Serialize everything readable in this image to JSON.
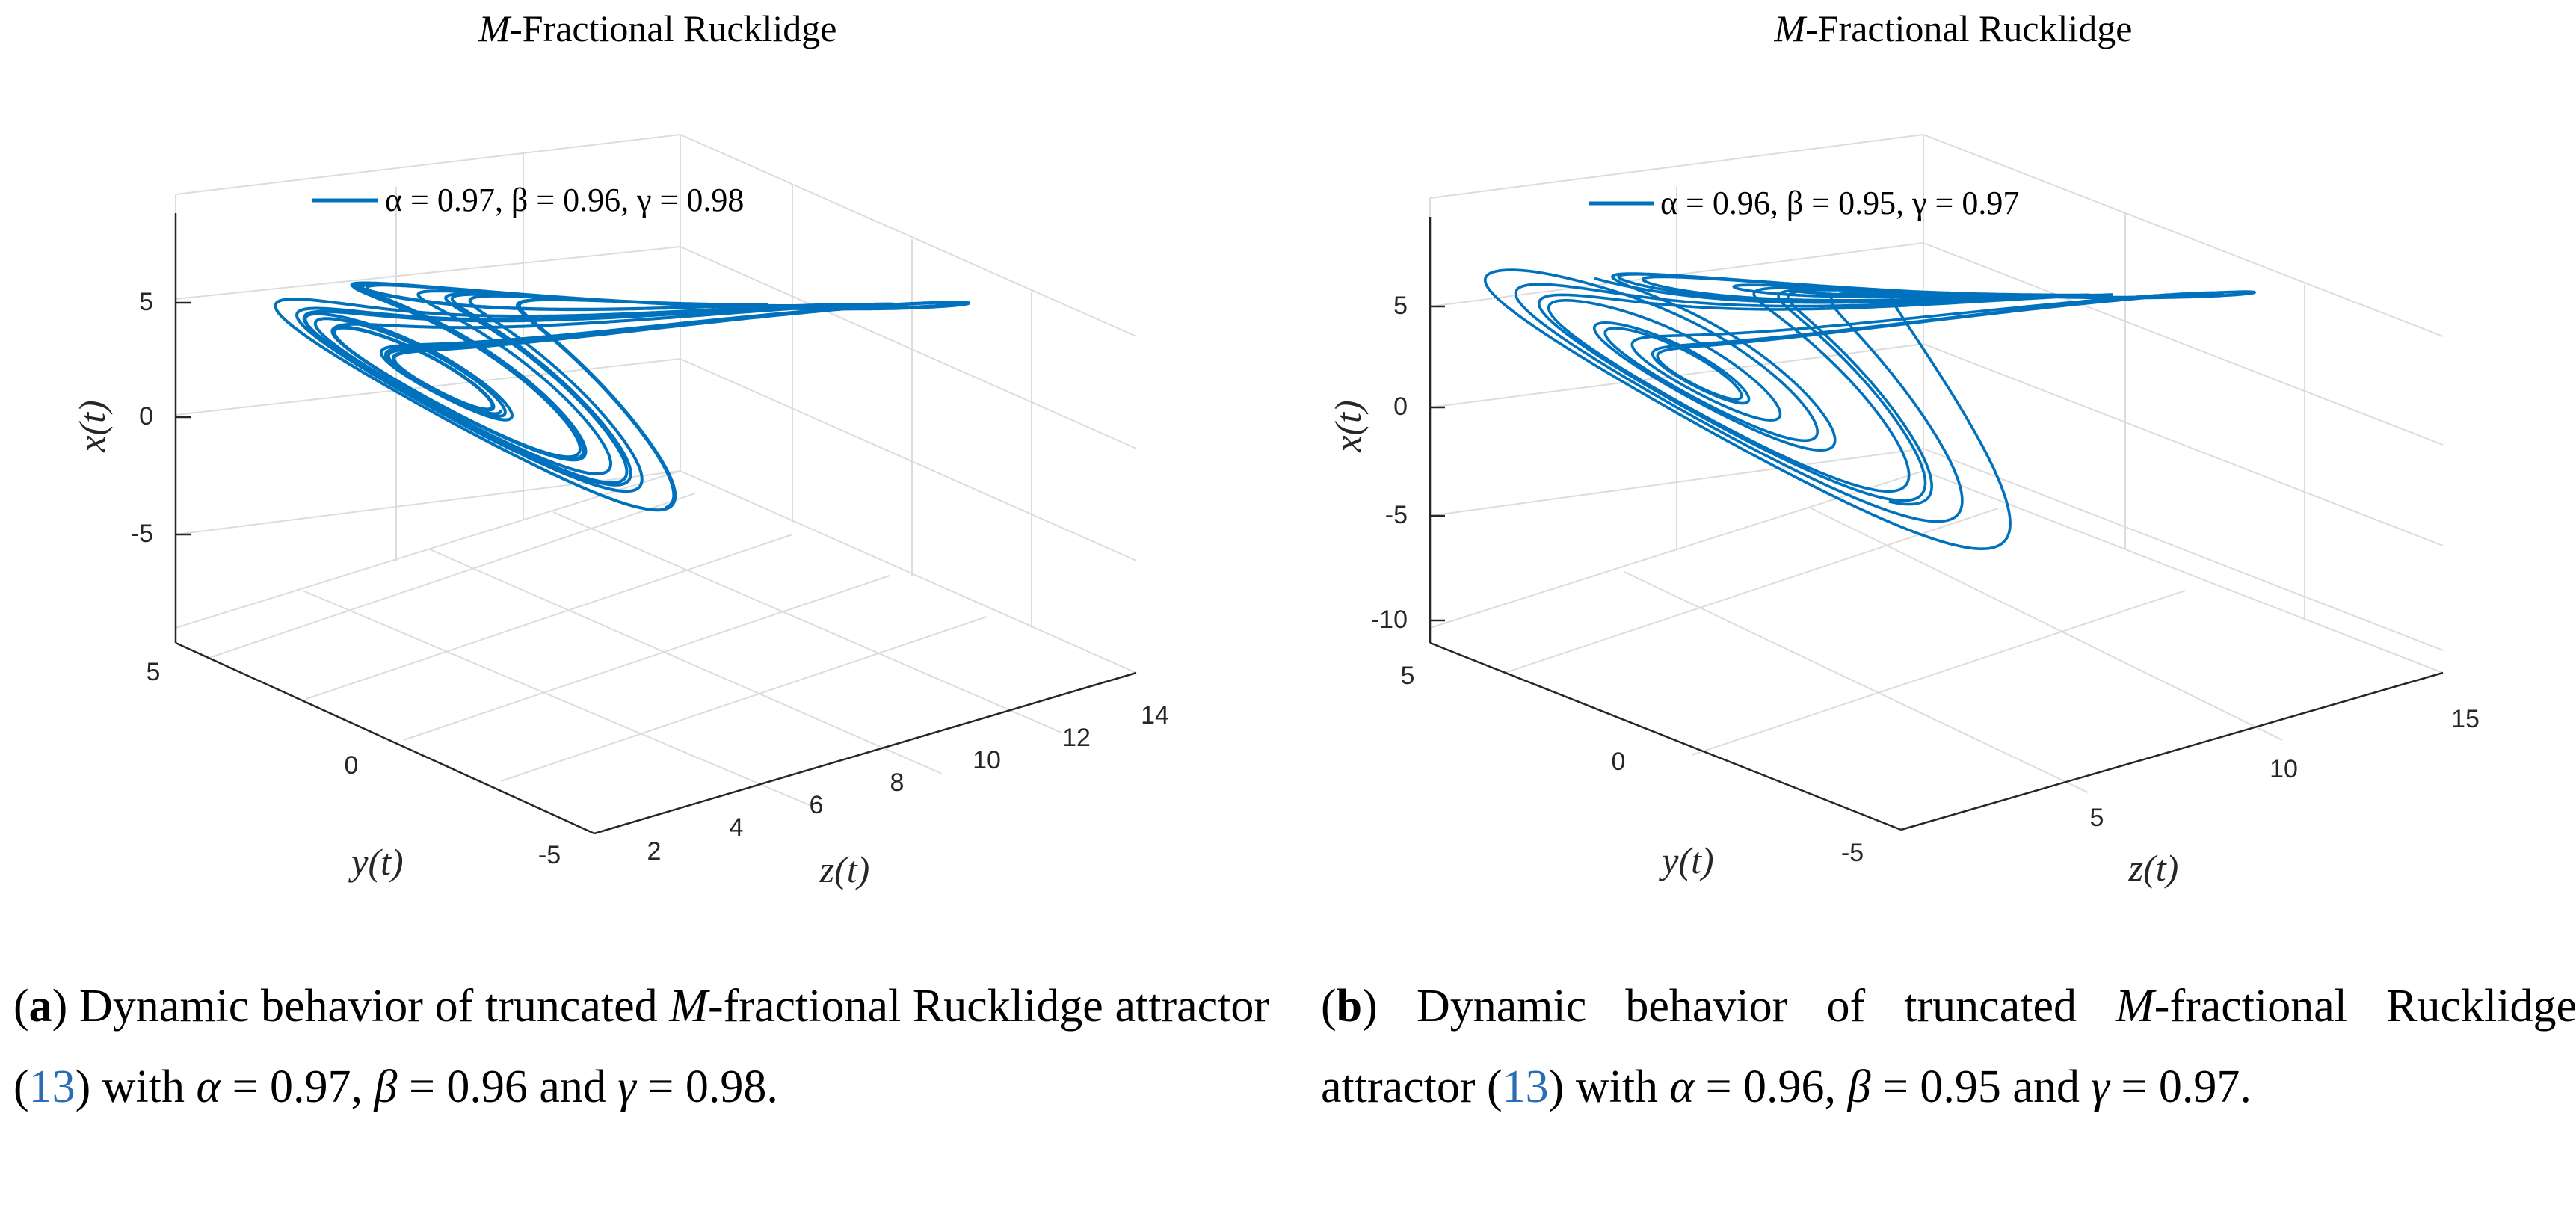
{
  "chart_data": [
    {
      "type": "line-3d",
      "title": "M-Fractional Rucklidge",
      "title_italic": "M",
      "title_rest": "-Fractional Rucklidge",
      "legend": "α = 0.97, β = 0.96, γ = 0.98",
      "xlabel": "z(t)",
      "ylabel": "y(t)",
      "zlabel": "x(t)",
      "x_axis_ticks": [
        "2",
        "4",
        "6",
        "8",
        "10",
        "12",
        "14"
      ],
      "y_axis_ticks": [
        "5",
        "0",
        "-5"
      ],
      "vertical_axis_ticks": [
        "5",
        "0",
        "-5"
      ],
      "series_color": "#0072bd",
      "parameters": {
        "alpha": 0.97,
        "beta": 0.96,
        "gamma": 0.98
      }
    },
    {
      "type": "line-3d",
      "title": "M-Fractional Rucklidge",
      "title_italic": "M",
      "title_rest": "-Fractional Rucklidge",
      "legend": "α = 0.96, β = 0.95, γ = 0.97",
      "xlabel": "z(t)",
      "ylabel": "y(t)",
      "zlabel": "x(t)",
      "x_axis_ticks": [
        "5",
        "10",
        "15"
      ],
      "y_axis_ticks": [
        "5",
        "0",
        "-5"
      ],
      "vertical_axis_ticks": [
        "5",
        "0",
        "-5",
        "-10"
      ],
      "series_color": "#0072bd",
      "parameters": {
        "alpha": 0.96,
        "beta": 0.95,
        "gamma": 0.97
      }
    }
  ],
  "captions": [
    {
      "label": "a",
      "text_1": "Dynamic behavior of truncated ",
      "italic_m": "M",
      "text_2": "-fractional Rucklidge attractor (",
      "ref": "13",
      "text_3": ") with ",
      "alpha": "α",
      "alpha_val": " = 0.97, ",
      "beta": "β",
      "beta_val": " = 0.96 and ",
      "gamma": "γ",
      "gamma_val": " = 0.98."
    },
    {
      "label": "b",
      "text_1": "Dynamic behavior of truncated ",
      "italic_m": "M",
      "text_2": "-fractional Rucklidge attractor (",
      "ref": "13",
      "text_3": ") with ",
      "alpha": "α",
      "alpha_val": " = 0.96, ",
      "beta": "β",
      "beta_val": " = 0.95 and ",
      "gamma": "γ",
      "gamma_val": " = 0.97."
    }
  ]
}
